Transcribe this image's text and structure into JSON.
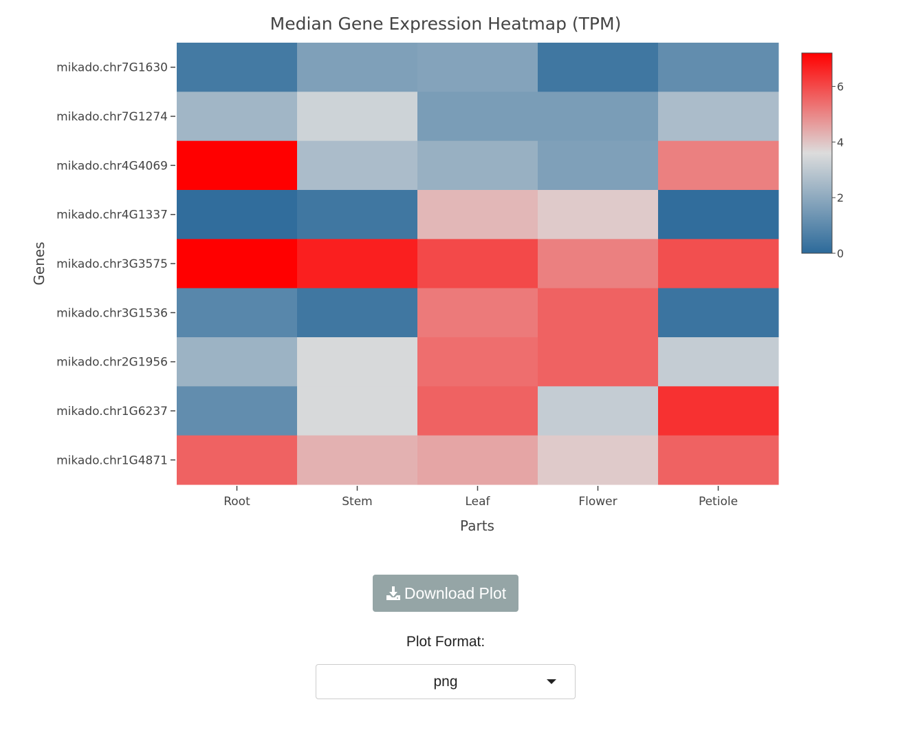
{
  "chart_data": {
    "type": "heatmap",
    "title": "Median Gene Expression Heatmap (TPM)",
    "xlabel": "Parts",
    "ylabel": "Genes",
    "x": [
      "Root",
      "Stem",
      "Leaf",
      "Flower",
      "Petiole"
    ],
    "y": [
      "mikado.chr7G1630",
      "mikado.chr7G1274",
      "mikado.chr4G4069",
      "mikado.chr4G1337",
      "mikado.chr3G3575",
      "mikado.chr3G1536",
      "mikado.chr2G1956",
      "mikado.chr1G6237",
      "mikado.chr1G4871"
    ],
    "z": [
      [
        0.5,
        1.7,
        1.8,
        0.4,
        1.1
      ],
      [
        2.4,
        3.3,
        1.6,
        1.6,
        2.6
      ],
      [
        7.2,
        2.6,
        2.2,
        1.7,
        5.1
      ],
      [
        0.1,
        0.4,
        4.2,
        3.9,
        0.1
      ],
      [
        7.2,
        6.7,
        6.0,
        5.1,
        5.9
      ],
      [
        0.9,
        0.4,
        5.2,
        5.6,
        0.3
      ],
      [
        2.3,
        3.5,
        5.4,
        5.6,
        3.1
      ],
      [
        1.1,
        3.5,
        5.6,
        3.1,
        6.4
      ],
      [
        5.6,
        4.3,
        4.5,
        3.9,
        5.6
      ]
    ],
    "zrange": [
      0,
      7.2
    ],
    "colorscale": [
      "#2c6a9a",
      "#dcdcdc",
      "#ff0000"
    ],
    "colorbar": {
      "ticks": [
        0,
        2,
        4,
        6
      ],
      "ticklabels": [
        "0",
        "2",
        "4",
        "6"
      ]
    },
    "grid": false
  },
  "controls": {
    "download_label": "Download Plot",
    "format_label": "Plot Format:",
    "format_value": "png"
  },
  "icons": {
    "download": "download-icon",
    "dropdown": "caret-down-icon"
  },
  "colors": {
    "button_bg": "#95a5a6",
    "button_text": "#ffffff"
  }
}
